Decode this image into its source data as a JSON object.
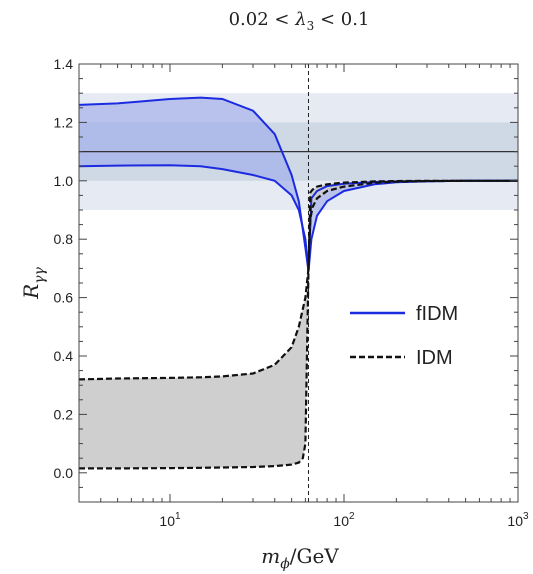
{
  "chart_data": {
    "type": "line",
    "title": "0.02 < λ₃ < 0.1",
    "xlabel": "m_ϕ/GeV",
    "ylabel": "R_γγ",
    "x_scale": "log",
    "xlim": [
      3,
      1000
    ],
    "ylim": [
      -0.1,
      1.4
    ],
    "y_ticks": [
      "0.0",
      "0.2",
      "0.4",
      "0.6",
      "0.8",
      "1.0",
      "1.2",
      "1.4"
    ],
    "x_ticks": [
      {
        "value": 10,
        "base": "10",
        "exp": "1"
      },
      {
        "value": 100,
        "base": "10",
        "exp": "2"
      },
      {
        "value": 1000,
        "base": "10",
        "exp": "3"
      }
    ],
    "bands": [
      {
        "y0": 0.9,
        "y1": 1.3,
        "color": "#e6ebf3"
      },
      {
        "y0": 1.0,
        "y1": 1.2,
        "color": "#cfd9e6"
      }
    ],
    "reference_line": {
      "y": 1.1,
      "color": "#333333"
    },
    "vertical_marker": {
      "x": 62.5,
      "style": "dashed"
    },
    "legend": {
      "placement": "center-right"
    },
    "series": [
      {
        "name": "fIDM",
        "color": "#1c2be0",
        "fill": "#9aa6ea",
        "style": "solid",
        "upper": {
          "x": [
            3,
            5,
            10,
            15,
            20,
            30,
            40,
            50,
            55,
            60,
            62.5,
            65,
            70,
            80,
            100,
            150,
            200,
            300,
            500,
            1000
          ],
          "y": [
            1.26,
            1.265,
            1.28,
            1.285,
            1.28,
            1.24,
            1.16,
            1.02,
            0.93,
            0.77,
            0.69,
            0.94,
            0.965,
            0.982,
            0.99,
            0.996,
            0.998,
            0.999,
            1.0,
            1.0
          ]
        },
        "lower": {
          "x": [
            3,
            5,
            10,
            15,
            20,
            30,
            40,
            50,
            55,
            60,
            62.5,
            65,
            70,
            80,
            100,
            150,
            200,
            300,
            500,
            1000
          ],
          "y": [
            1.05,
            1.052,
            1.053,
            1.05,
            1.04,
            1.02,
            1.0,
            0.95,
            0.9,
            0.8,
            0.69,
            0.8,
            0.88,
            0.93,
            0.965,
            0.988,
            0.995,
            0.998,
            1.0,
            1.0
          ]
        }
      },
      {
        "name": "IDM",
        "color": "#111111",
        "fill": "#cccccc",
        "style": "dashed",
        "upper": {
          "x": [
            3,
            5,
            10,
            15,
            20,
            30,
            40,
            50,
            55,
            60,
            62.5,
            64,
            66,
            70,
            80,
            100,
            150,
            200,
            300,
            500,
            1000
          ],
          "y": [
            0.32,
            0.323,
            0.325,
            0.327,
            0.33,
            0.34,
            0.37,
            0.43,
            0.5,
            0.6,
            0.7,
            0.96,
            0.97,
            0.98,
            0.988,
            0.994,
            0.998,
            0.999,
            1.0,
            1.0,
            1.0
          ]
        },
        "lower": {
          "x": [
            3,
            5,
            10,
            15,
            20,
            30,
            40,
            50,
            55,
            58,
            60,
            62.5,
            64,
            66,
            70,
            80,
            100,
            150,
            200,
            300,
            500,
            1000
          ],
          "y": [
            0.015,
            0.015,
            0.016,
            0.017,
            0.018,
            0.02,
            0.023,
            0.028,
            0.035,
            0.05,
            0.1,
            0.7,
            0.87,
            0.91,
            0.94,
            0.965,
            0.98,
            0.993,
            0.997,
            0.999,
            1.0,
            1.0
          ]
        }
      }
    ]
  }
}
